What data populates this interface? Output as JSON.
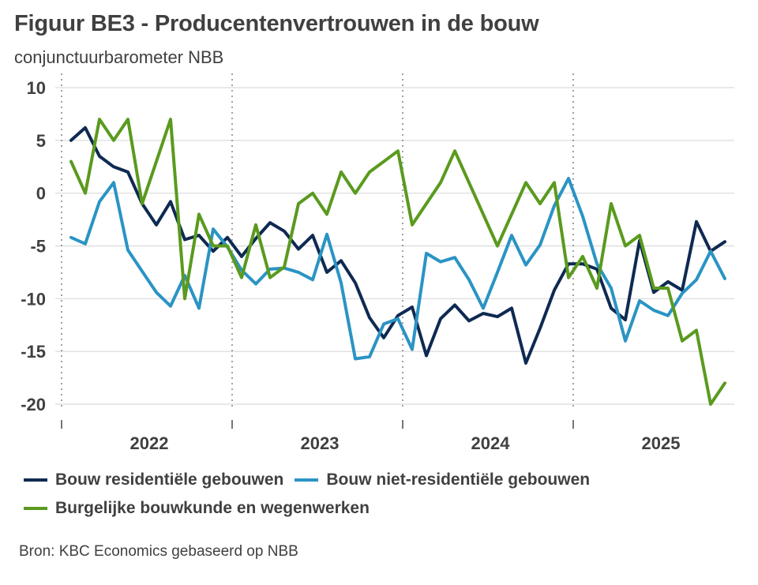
{
  "title": "Figuur BE3 - Producentenvertrouwen in de bouw",
  "subtitle": "conjunctuurbarometer NBB",
  "source": "Bron: KBC Economics gebaseerd op NBB",
  "chart_data": {
    "type": "line",
    "title": "Figuur BE3 - Producentenvertrouwen in de bouw",
    "subtitle": "conjunctuurbarometer NBB",
    "xlabel": "",
    "ylabel": "",
    "ylim": [
      -20,
      10
    ],
    "yticks": [
      10,
      5,
      0,
      -5,
      -10,
      -15,
      -20
    ],
    "ytick_labels": [
      "10",
      "5",
      "0",
      "-5",
      "-10",
      "-15",
      "-20"
    ],
    "year_labels": [
      "2022",
      "2023",
      "2024",
      "2025"
    ],
    "x_start": "2022-01",
    "n_months": 47,
    "grid": true,
    "legend": "bottom",
    "colors": {
      "residential": "#0e2a52",
      "non_residential": "#2a94c4",
      "civil": "#5a9a1e",
      "grid": "#d9d9d9",
      "axis": "#555555"
    },
    "series": [
      {
        "key": "residential",
        "name": "Bouw residentiële gebouwen",
        "values": [
          5,
          6.2,
          3.5,
          2.5,
          2,
          -1,
          -3,
          -0.8,
          -4.4,
          -4,
          -5.5,
          -4.2,
          -6,
          -4.3,
          -2.8,
          -3.6,
          -5.3,
          -4,
          -7.5,
          -6.4,
          -8.5,
          -11.8,
          -13.7,
          -11.6,
          -10.8,
          -15.4,
          -11.9,
          -10.6,
          -12.1,
          -11.4,
          -11.7,
          -10.9,
          -16.1,
          -12.8,
          -9.2,
          -6.7,
          -6.7,
          -7.2,
          -10.9,
          -12,
          -4.5,
          -9.4,
          -8.4,
          -9.2,
          -2.7,
          -5.5,
          -4.6
        ]
      },
      {
        "key": "non_residential",
        "name": "Bouw niet-residentiële gebouwen",
        "values": [
          -4.2,
          -4.8,
          -0.8,
          1,
          -5.4,
          -7.4,
          -9.4,
          -10.7,
          -7.8,
          -10.9,
          -3.4,
          -5.1,
          -7.3,
          -8.6,
          -7.2,
          -7.1,
          -7.5,
          -8.2,
          -3.9,
          -8.5,
          -15.7,
          -15.5,
          -12.4,
          -11.9,
          -14.8,
          -5.7,
          -6.5,
          -6.1,
          -8.2,
          -10.9,
          -7.5,
          -4,
          -6.8,
          -4.9,
          -1.2,
          1.4,
          -2.2,
          -6.7,
          -9,
          -14,
          -10.2,
          -11.1,
          -11.6,
          -9.5,
          -8.2,
          -5.5,
          -8.1
        ]
      },
      {
        "key": "civil",
        "name": "Burgelijke bouwkunde en wegenwerken",
        "values": [
          3,
          0,
          7,
          5,
          7,
          -1,
          3,
          7,
          -10,
          -2,
          -5,
          -5,
          -8,
          -3,
          -8,
          -7,
          -1,
          0,
          -2,
          2,
          0,
          2,
          3,
          4,
          -3,
          -1,
          1,
          4,
          1,
          -2,
          -5,
          -2,
          1,
          -1,
          1,
          -8,
          -6,
          -9,
          -1,
          -5,
          -4,
          -9,
          -9,
          -14,
          -13,
          -20,
          -18
        ]
      }
    ]
  }
}
